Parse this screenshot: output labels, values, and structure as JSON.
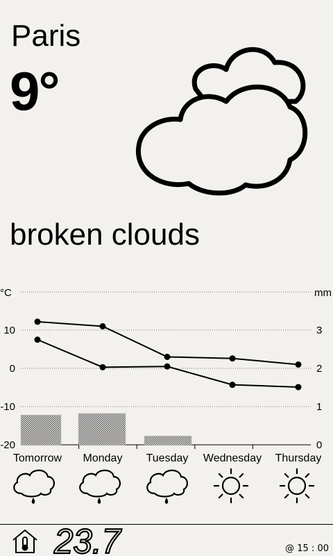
{
  "current": {
    "city": "Paris",
    "temperature": "9°",
    "condition": "broken clouds",
    "icon": "broken-clouds-icon"
  },
  "chart_data": {
    "type": "line",
    "left_unit": "°C",
    "right_unit": "mm",
    "categories": [
      "Tomorrow",
      "Monday",
      "Tuesday",
      "Wednesday",
      "Thursday"
    ],
    "left_ticks": [
      "10",
      "0",
      "-10",
      "-20"
    ],
    "right_ticks": [
      "3",
      "2",
      "1",
      "0"
    ],
    "ylim": [
      -20,
      20
    ],
    "y2lim": [
      0,
      4
    ],
    "series": [
      {
        "values": [
          12.2,
          11.0,
          3.0,
          2.6,
          1.0
        ]
      },
      {
        "values": [
          7.5,
          0.3,
          0.5,
          -4.3,
          -4.9
        ]
      }
    ],
    "precipitation": [
      0.78,
      0.82,
      0.23,
      0,
      0
    ]
  },
  "forecast": [
    {
      "icon": "rain-cloud-icon"
    },
    {
      "icon": "rain-cloud-icon"
    },
    {
      "icon": "rain-cloud-icon"
    },
    {
      "icon": "sun-icon"
    },
    {
      "icon": "sun-icon"
    }
  ],
  "footer": {
    "indoor_temperature": "23.7",
    "updated": "@ 15 : 00"
  }
}
